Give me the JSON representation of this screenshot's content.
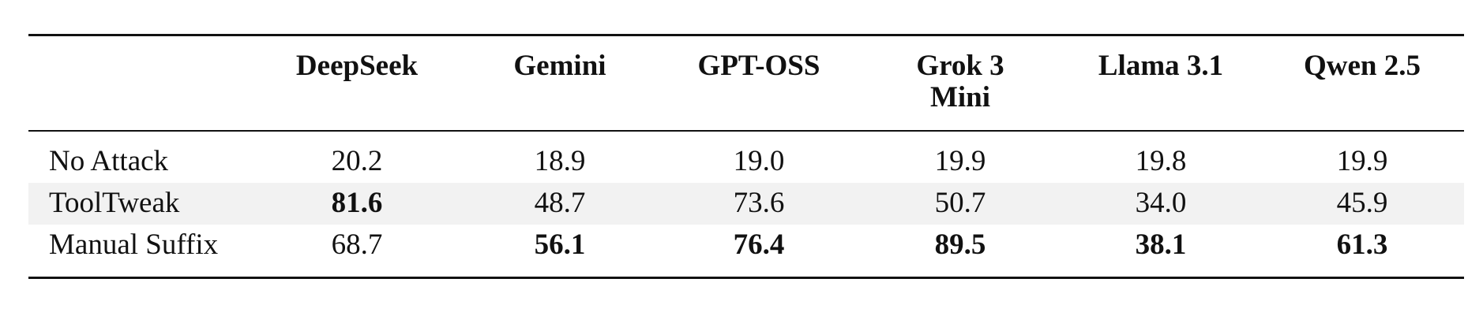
{
  "table": {
    "columns": [
      "DeepSeek",
      "Gemini",
      "GPT-OSS",
      "Grok 3 Mini",
      "Llama 3.1",
      "Qwen 2.5"
    ],
    "rows": [
      {
        "label": "No Attack",
        "values": [
          "20.2",
          "18.9",
          "19.0",
          "19.9",
          "19.8",
          "19.9"
        ],
        "bold": [
          false,
          false,
          false,
          false,
          false,
          false
        ],
        "shaded": false
      },
      {
        "label": "ToolTweak",
        "values": [
          "81.6",
          "48.7",
          "73.6",
          "50.7",
          "34.0",
          "45.9"
        ],
        "bold": [
          true,
          false,
          false,
          false,
          false,
          false
        ],
        "shaded": true
      },
      {
        "label": "Manual Suffix",
        "values": [
          "68.7",
          "56.1",
          "76.4",
          "89.5",
          "38.1",
          "61.3"
        ],
        "bold": [
          false,
          true,
          true,
          true,
          true,
          true
        ],
        "shaded": false
      }
    ]
  }
}
